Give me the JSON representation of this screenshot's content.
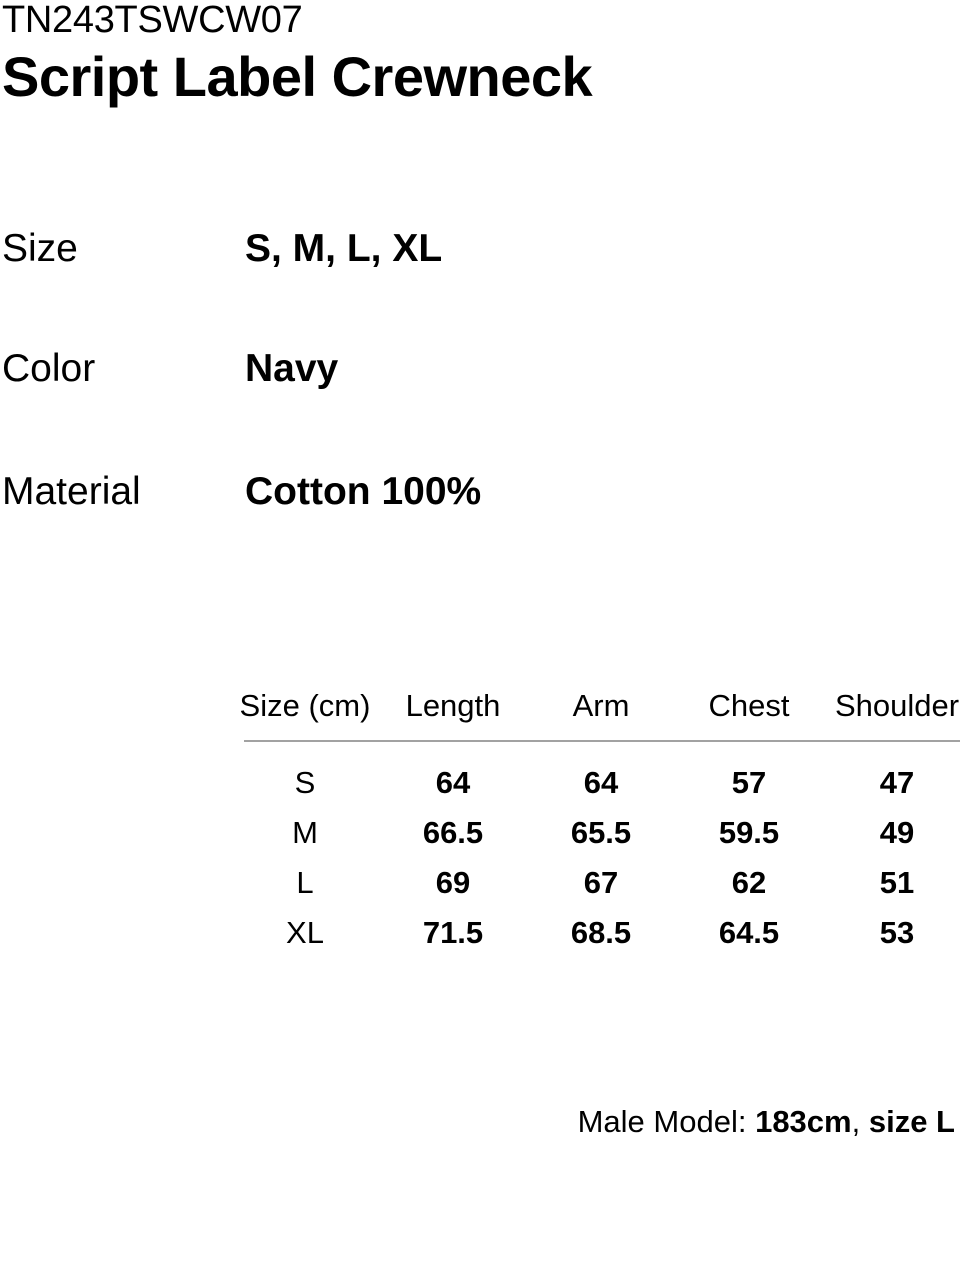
{
  "product": {
    "code": "TN243TSWCW07",
    "name": "Script Label Crewneck"
  },
  "specs": [
    {
      "label": "Size",
      "value": "S, M, L, XL"
    },
    {
      "label": "Color",
      "value": "Navy"
    },
    {
      "label": "Material",
      "value": "Cotton 100%"
    }
  ],
  "size_table": {
    "columns": [
      "Size (cm)",
      "Length",
      "Arm",
      "Chest",
      "Shoulder"
    ],
    "rows": [
      {
        "size": "S",
        "values": [
          "64",
          "64",
          "57",
          "47"
        ]
      },
      {
        "size": "M",
        "values": [
          "66.5",
          "65.5",
          "59.5",
          "49"
        ]
      },
      {
        "size": "L",
        "values": [
          "69",
          "67",
          "62",
          "51"
        ]
      },
      {
        "size": "XL",
        "values": [
          "71.5",
          "68.5",
          "64.5",
          "53"
        ]
      }
    ]
  },
  "model_info": {
    "prefix": "Male Model: ",
    "height": "183cm",
    "separator": ", ",
    "size": "size L"
  },
  "colors": {
    "text": "#000000",
    "divider": "#a2a2a2",
    "background": "#ffffff"
  }
}
